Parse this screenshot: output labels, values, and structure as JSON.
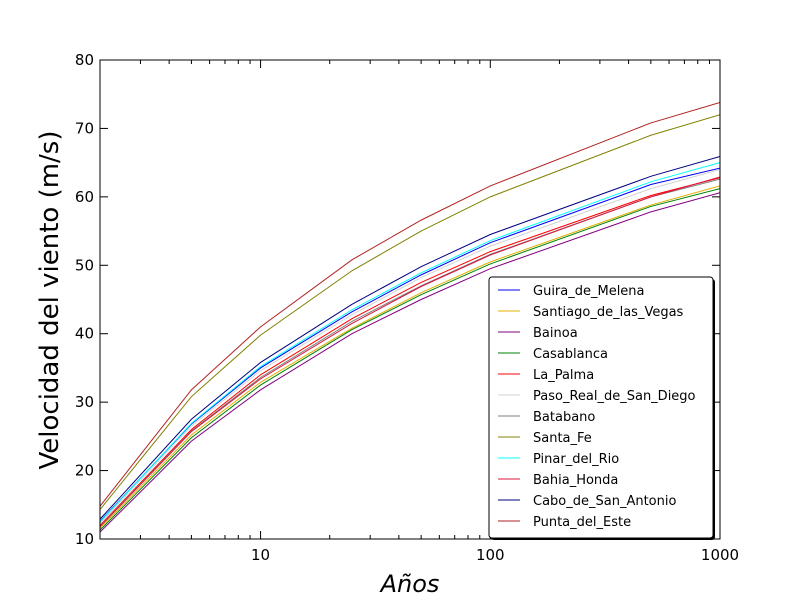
{
  "chart_data": {
    "type": "line",
    "xlabel": "Años",
    "ylabel": "Velocidad del viento (m/s)",
    "xscale": "log",
    "xlim": [
      2,
      1000
    ],
    "ylim": [
      10,
      80
    ],
    "x_ticks": [
      10,
      100,
      1000
    ],
    "y_ticks": [
      10,
      20,
      30,
      40,
      50,
      60,
      70,
      80
    ],
    "grid": false,
    "legend_position": "lower-right",
    "x": [
      2,
      5,
      10,
      25,
      50,
      100,
      500,
      1000
    ],
    "series": [
      {
        "name": "Guira_de_Melena",
        "color": "#0000ff",
        "values": [
          12.6,
          26.8,
          35.0,
          43.2,
          48.6,
          53.3,
          61.8,
          64.2
        ]
      },
      {
        "name": "Santiago_de_las_Vegas",
        "color": "#e0b000",
        "values": [
          11.6,
          25.2,
          32.9,
          40.8,
          46.0,
          50.5,
          58.8,
          61.6
        ]
      },
      {
        "name": "Bainoa",
        "color": "#800080",
        "values": [
          11.0,
          24.3,
          31.8,
          40.0,
          45.0,
          49.5,
          57.8,
          60.6
        ]
      },
      {
        "name": "Casablanca",
        "color": "#008000",
        "values": [
          11.3,
          24.8,
          32.5,
          40.6,
          45.7,
          50.2,
          58.6,
          61.2
        ]
      },
      {
        "name": "La_Palma",
        "color": "#ff0000",
        "values": [
          12.0,
          26.0,
          34.0,
          42.2,
          47.5,
          52.0,
          60.2,
          62.8
        ]
      },
      {
        "name": "Paso_Real_de_San_Diego",
        "color": "#d3d3d3",
        "values": [
          12.3,
          26.5,
          34.6,
          42.8,
          48.2,
          52.8,
          61.2,
          64.0
        ]
      },
      {
        "name": "Batabano",
        "color": "#808080",
        "values": [
          11.9,
          25.8,
          33.6,
          41.8,
          47.0,
          51.6,
          60.0,
          62.6
        ]
      },
      {
        "name": "Santa_Fe",
        "color": "#808000",
        "values": [
          14.3,
          30.8,
          39.8,
          49.2,
          55.0,
          60.0,
          69.0,
          72.0
        ]
      },
      {
        "name": "Pinar_del_Rio",
        "color": "#00ffff",
        "values": [
          12.5,
          26.9,
          35.2,
          43.5,
          48.9,
          53.6,
          62.2,
          65.0
        ]
      },
      {
        "name": "Bahia_Honda",
        "color": "#dc143c",
        "values": [
          11.8,
          25.7,
          33.4,
          41.5,
          46.9,
          51.5,
          60.0,
          62.9
        ]
      },
      {
        "name": "Cabo_de_San_Antonio",
        "color": "#000080",
        "values": [
          12.9,
          27.5,
          35.8,
          44.3,
          49.8,
          54.5,
          63.0,
          65.9
        ]
      },
      {
        "name": "Punta_del_Este",
        "color": "#b22222",
        "values": [
          14.8,
          31.8,
          41.0,
          50.8,
          56.6,
          61.6,
          70.8,
          73.8
        ]
      }
    ]
  }
}
